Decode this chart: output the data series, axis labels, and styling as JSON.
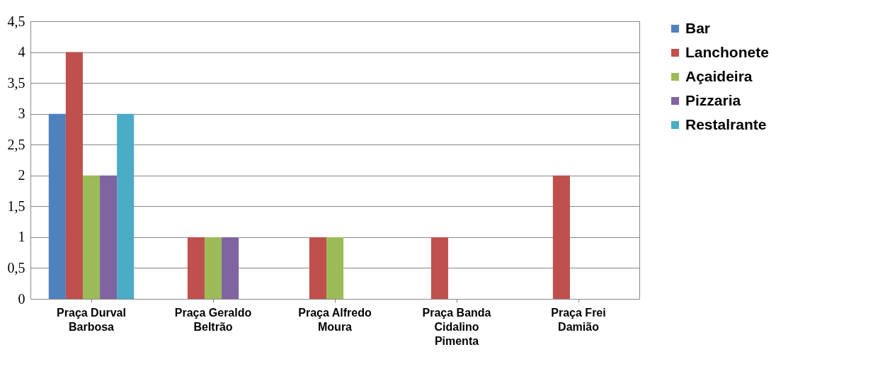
{
  "chart_data": {
    "type": "bar",
    "categories": [
      "Praça Durval Barbosa",
      "Praça Geraldo Beltrão",
      "Praça Alfredo Moura",
      "Praça Banda Cidalino Pimenta",
      "Praça Frei Damião"
    ],
    "series": [
      {
        "name": "Bar",
        "color": "#4f81bd",
        "values": [
          3,
          null,
          null,
          null,
          null
        ]
      },
      {
        "name": "Lanchonete",
        "color": "#c0504d",
        "values": [
          4,
          1,
          1,
          1,
          2
        ]
      },
      {
        "name": "Açaideira",
        "color": "#9bbb59",
        "values": [
          2,
          1,
          1,
          null,
          null
        ]
      },
      {
        "name": "Pizzaria",
        "color": "#8064a2",
        "values": [
          2,
          1,
          null,
          null,
          null
        ]
      },
      {
        "name": "Restalrante",
        "color": "#4bacc6",
        "values": [
          3,
          null,
          null,
          null,
          null
        ]
      }
    ],
    "ylim": [
      0,
      4.5
    ],
    "yticks": [
      0,
      {
        "value": 0.5,
        "label": "0,5"
      },
      1,
      {
        "value": 1.5,
        "label": "1,5"
      },
      2,
      {
        "value": 2.5,
        "label": "2,5"
      },
      3,
      {
        "value": 3.5,
        "label": "3,5"
      },
      4,
      {
        "value": 4.5,
        "label": "4,5"
      }
    ],
    "grid": "y",
    "legend": "right"
  }
}
